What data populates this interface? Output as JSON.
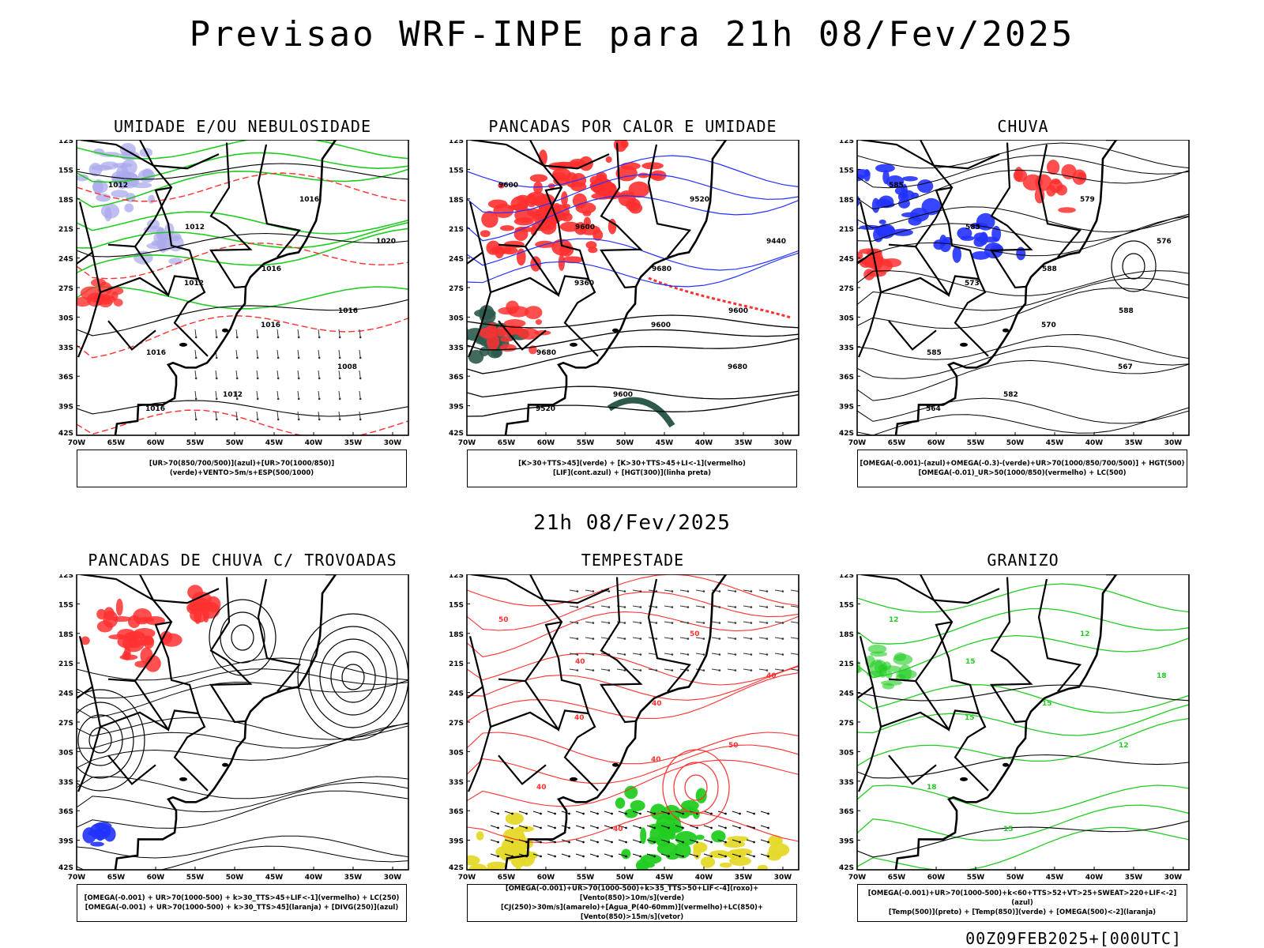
{
  "title": "Previsao WRF-INPE  para 21h 08/Fev/2025",
  "mid_time": "21h 08/Fev/2025",
  "footer": "00Z09FEB2025+[000UTC]",
  "lat_labels": [
    "12S",
    "15S",
    "18S",
    "21S",
    "24S",
    "27S",
    "30S",
    "33S",
    "36S",
    "39S",
    "42S"
  ],
  "lon_labels": [
    "70W",
    "65W",
    "60W",
    "55W",
    "50W",
    "45W",
    "40W",
    "35W",
    "30W"
  ],
  "colors": {
    "red": "#ff3030",
    "green": "#22cc22",
    "blue": "#2233ff",
    "purple": "#a9a9ec",
    "darkgreen": "#2e5a4e",
    "yellow": "#e5d92a"
  },
  "panels": [
    {
      "id": "umidade",
      "title": "UMIDADE E/OU NEBULOSIDADE",
      "caption": [
        "[UR>70(850/700/500)](azul)+[UR>70(1000/850)](verde)+VENTO>5m/s+ESP(500/1000)"
      ],
      "contours": [
        "1012",
        "1012",
        "1016",
        "1016",
        "1016",
        "1012",
        "1016",
        "1020",
        "1012",
        "1016",
        "1008",
        "1016"
      ]
    },
    {
      "id": "pancadas-calor",
      "title": "PANCADAS POR CALOR E UMIDADE",
      "caption": [
        "[K>30+TTS>45](verde) + [K>30+TTS>45+LI<-1](vermelho)",
        "[LIF](cont.azul) + [HGT(300)](linha preta)"
      ],
      "contours": [
        "9600",
        "9600",
        "9680",
        "9600",
        "9680",
        "9600",
        "9520",
        "9440",
        "9360",
        "9600",
        "9680",
        "9520"
      ]
    },
    {
      "id": "chuva",
      "title": "CHUVA",
      "caption": [
        "[OMEGA(-0.001)-(azul)+OMEGA(-0.3)-(verde)+UR>70(1000/850/700/500)] + HGT(500)",
        "[OMEGA(-0.01)_UR>50(1000/850)(vermelho) + LC(500)"
      ],
      "contours": [
        "585",
        "585",
        "588",
        "588",
        "585",
        "582",
        "579",
        "576",
        "573",
        "570",
        "567",
        "564"
      ]
    },
    {
      "id": "trovoadas",
      "title": "PANCADAS DE CHUVA C/ TROVOADAS",
      "caption": [
        "[OMEGA(-0.001) + UR>70(1000-500) + k>30_TTS>45+LIF<-1](vermelho) + LC(250)",
        "[OMEGA(-0.001) + UR>70(1000-500) + k>30_TTS>45](laranja) + [DIVG(250)](azul)"
      ],
      "contours": []
    },
    {
      "id": "tempestade",
      "title": "TEMPESTADE",
      "caption": [
        "[OMEGA(-0.001)+UR>70(1000-500)+k>35_TTS>50+LIF<-4](roxo)+[Vento(850)>10m/s](verde)",
        "[CJ(250)>30m/s](amarelo)+[Agua_P(40-60mm)](vermelho)+LC(850)+[Vento(850)>15m/s](vetor)"
      ],
      "contours": [
        "50",
        "40",
        "40",
        "50",
        "40",
        "40",
        "50",
        "40",
        "40",
        "40"
      ]
    },
    {
      "id": "granizo",
      "title": "GRANIZO",
      "caption": [
        "[OMEGA(-0.001)+UR>70(1000-500)+k<60+TTS>52+VT>25+SWEAT>220+LIF<-2](azul)",
        "[Temp(500)](preto) + [Temp(850)](verde) + [OMEGA(500)<-2](laranja)"
      ],
      "contours": [
        "12",
        "15",
        "15",
        "12",
        "18",
        "15",
        "12",
        "18",
        "15"
      ]
    }
  ]
}
